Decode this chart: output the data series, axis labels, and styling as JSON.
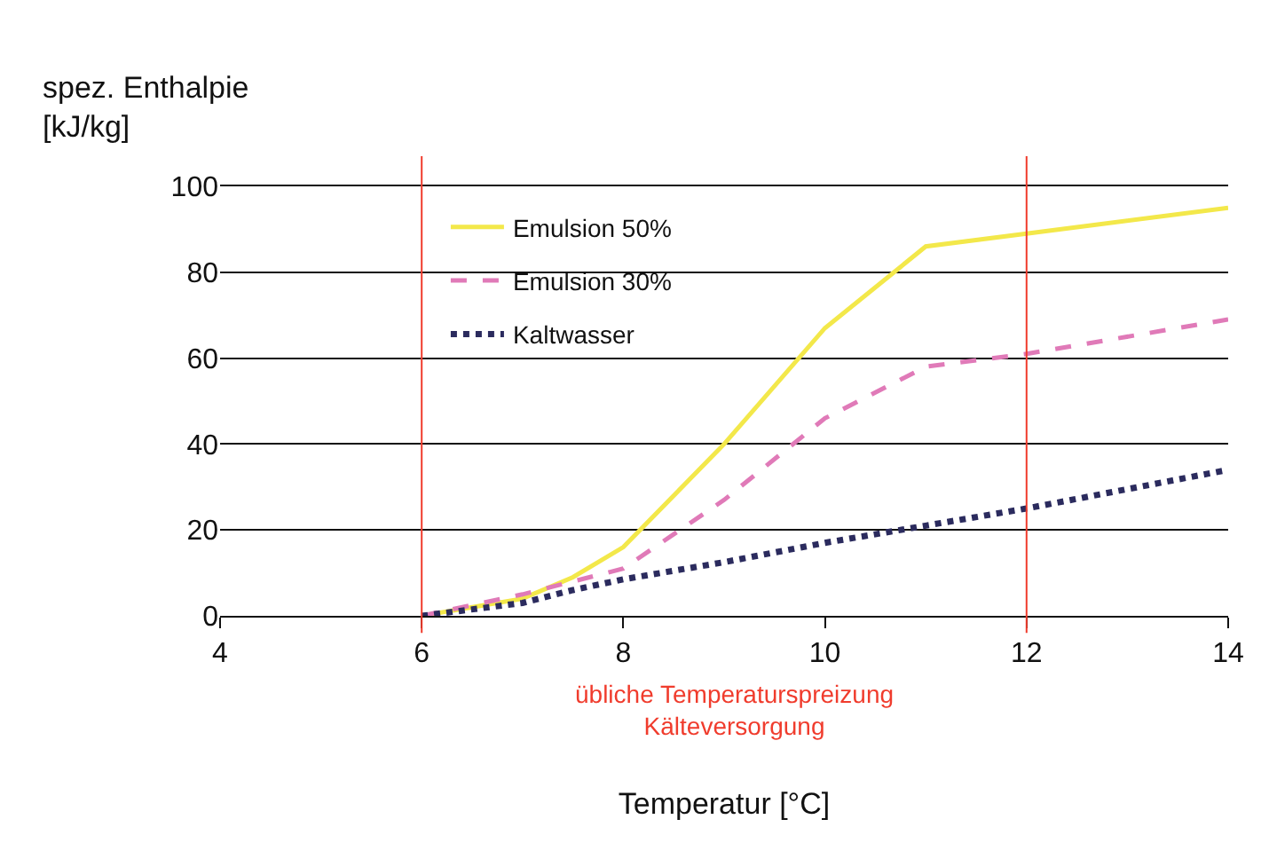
{
  "chart_data": {
    "type": "line",
    "ylabel": "spez. Enthalpie\n[kJ/kg]",
    "xlabel": "Temperatur [°C]",
    "x": [
      6,
      7,
      7.5,
      8,
      9,
      10,
      11,
      12,
      14
    ],
    "series": [
      {
        "name": "Emulsion 50%",
        "color": "#f3e84a",
        "line_style": "solid",
        "values": [
          0,
          4,
          9,
          16,
          40,
          67,
          86,
          89,
          95
        ]
      },
      {
        "name": "Emulsion 30%",
        "color": "#e07ab8",
        "line_style": "dashed",
        "values": [
          0,
          5,
          8,
          11,
          27,
          46,
          58,
          61,
          69
        ]
      },
      {
        "name": "Kaltwasser",
        "color": "#2b2b5e",
        "line_style": "dotted",
        "values": [
          0,
          3,
          6,
          8.5,
          12.5,
          17,
          21,
          25,
          34
        ]
      }
    ],
    "xlim": [
      4,
      14
    ],
    "xticks": [
      4,
      6,
      8,
      10,
      12,
      14
    ],
    "ylim": [
      0,
      100
    ],
    "yticks": [
      0,
      20,
      40,
      60,
      80,
      100
    ],
    "ref_lines": [
      {
        "axis": "x",
        "value": 6,
        "color": "#f03c2d"
      },
      {
        "axis": "x",
        "value": 12,
        "color": "#f03c2d"
      }
    ],
    "annotations": [
      "übliche Temperaturspreizung\nKälteversorgung"
    ],
    "grid": "y",
    "legend": "top left",
    "marker": "none"
  }
}
